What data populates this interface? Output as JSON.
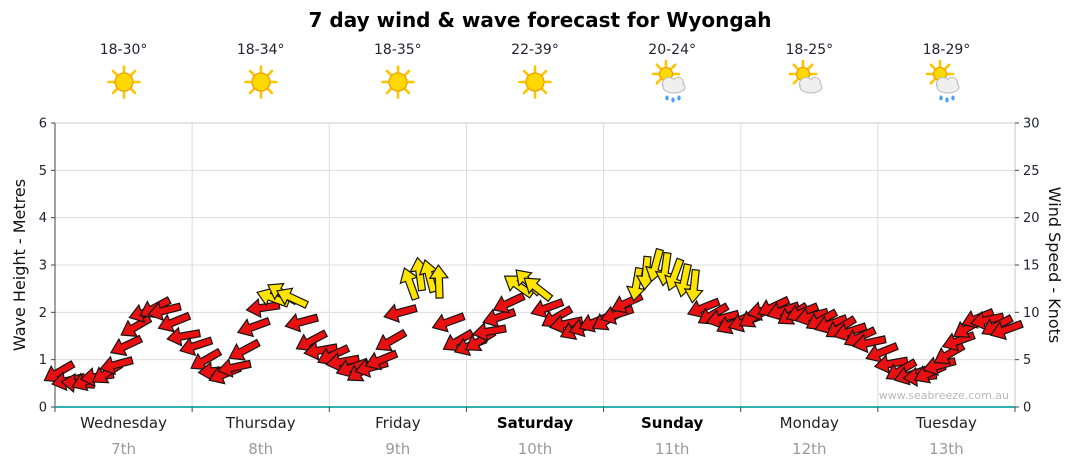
{
  "title": "7 day wind & wave forecast for Wyongah",
  "watermark": "www.seabreeze.com.au",
  "axes": {
    "left_label": "Wave Height - Metres",
    "right_label": "Wind Speed - Knots",
    "left_ticks": [
      0,
      1,
      2,
      3,
      4,
      5,
      6
    ],
    "right_ticks": [
      0,
      5,
      10,
      15,
      20,
      25,
      30
    ]
  },
  "days": [
    {
      "name": "Wednesday",
      "date": "7th",
      "temp": "18-30°",
      "icon": "sunny",
      "bold": false
    },
    {
      "name": "Thursday",
      "date": "8th",
      "temp": "18-34°",
      "icon": "sunny",
      "bold": false
    },
    {
      "name": "Friday",
      "date": "9th",
      "temp": "18-35°",
      "icon": "sunny",
      "bold": false
    },
    {
      "name": "Saturday",
      "date": "10th",
      "temp": "22-39°",
      "icon": "sunny",
      "bold": true
    },
    {
      "name": "Sunday",
      "date": "11th",
      "temp": "20-24°",
      "icon": "sun-showers",
      "bold": true
    },
    {
      "name": "Monday",
      "date": "12th",
      "temp": "18-25°",
      "icon": "partly-cloudy",
      "bold": false
    },
    {
      "name": "Tuesday",
      "date": "13th",
      "temp": "18-29°",
      "icon": "sun-showers",
      "bold": false
    }
  ],
  "chart_data": {
    "type": "wind-arrows",
    "title": "7 day wind & wave forecast for Wyongah",
    "x_days": [
      "Wednesday 7th",
      "Thursday 8th",
      "Friday 9th",
      "Saturday 10th",
      "Sunday 11th",
      "Monday 12th",
      "Tuesday 13th"
    ],
    "y_left": {
      "label": "Wave Height - Metres",
      "min": 0,
      "max": 6
    },
    "y_right": {
      "label": "Wind Speed - Knots",
      "min": 0,
      "max": 30
    },
    "legend": "red arrows = lighter winds, yellow arrows = stronger winds (~12+ knots); arrow angle = wind direction",
    "colors": {
      "r": "#e81010",
      "y": "#ffe400"
    },
    "point_fields": [
      "day_index",
      "day_fraction",
      "wind_knots",
      "direction_deg",
      "color"
    ],
    "points": [
      [
        0,
        0.03,
        3.7,
        150,
        "r"
      ],
      [
        0,
        0.1,
        2.8,
        168,
        "r"
      ],
      [
        0,
        0.17,
        2.5,
        185,
        "r"
      ],
      [
        0,
        0.24,
        2.8,
        158,
        "r"
      ],
      [
        0,
        0.31,
        3.2,
        172,
        "r"
      ],
      [
        0,
        0.38,
        3.6,
        148,
        "r"
      ],
      [
        0,
        0.45,
        4.5,
        165,
        "r"
      ],
      [
        0,
        0.52,
        6.5,
        155,
        "r"
      ],
      [
        0,
        0.59,
        8.5,
        150,
        "r"
      ],
      [
        0,
        0.66,
        10.0,
        162,
        "r"
      ],
      [
        0,
        0.73,
        10.5,
        152,
        "r"
      ],
      [
        0,
        0.8,
        10.2,
        166,
        "r"
      ],
      [
        0,
        0.87,
        9.0,
        158,
        "r"
      ],
      [
        0,
        0.94,
        7.5,
        170,
        "r"
      ],
      [
        1,
        0.03,
        6.5,
        162,
        "r"
      ],
      [
        1,
        0.1,
        5.0,
        150,
        "r"
      ],
      [
        1,
        0.17,
        3.8,
        175,
        "r"
      ],
      [
        1,
        0.24,
        3.5,
        158,
        "r"
      ],
      [
        1,
        0.31,
        4.2,
        168,
        "r"
      ],
      [
        1,
        0.38,
        6.0,
        152,
        "r"
      ],
      [
        1,
        0.45,
        8.5,
        160,
        "r"
      ],
      [
        1,
        0.52,
        10.5,
        172,
        "r"
      ],
      [
        1,
        0.59,
        11.5,
        200,
        "y"
      ],
      [
        1,
        0.66,
        12.0,
        210,
        "y"
      ],
      [
        1,
        0.73,
        11.5,
        205,
        "y"
      ],
      [
        1,
        0.8,
        9.0,
        165,
        "r"
      ],
      [
        1,
        0.87,
        7.0,
        152,
        "r"
      ],
      [
        1,
        0.94,
        6.0,
        170,
        "r"
      ],
      [
        2,
        0.03,
        5.5,
        155,
        "r"
      ],
      [
        2,
        0.1,
        4.8,
        170,
        "r"
      ],
      [
        2,
        0.17,
        4.2,
        160,
        "r"
      ],
      [
        2,
        0.24,
        3.8,
        148,
        "r"
      ],
      [
        2,
        0.31,
        4.2,
        165,
        "r"
      ],
      [
        2,
        0.38,
        5.0,
        158,
        "r"
      ],
      [
        2,
        0.45,
        7.0,
        150,
        "r"
      ],
      [
        2,
        0.52,
        10.0,
        165,
        "r"
      ],
      [
        2,
        0.59,
        13.0,
        250,
        "y"
      ],
      [
        2,
        0.66,
        14.0,
        262,
        "y"
      ],
      [
        2,
        0.73,
        13.8,
        255,
        "y"
      ],
      [
        2,
        0.8,
        13.2,
        268,
        "y"
      ],
      [
        2,
        0.87,
        9.0,
        160,
        "r"
      ],
      [
        2,
        0.94,
        7.0,
        150,
        "r"
      ],
      [
        3,
        0.03,
        6.5,
        158,
        "r"
      ],
      [
        3,
        0.1,
        7.0,
        148,
        "r"
      ],
      [
        3,
        0.17,
        8.0,
        170,
        "r"
      ],
      [
        3,
        0.24,
        9.5,
        162,
        "r"
      ],
      [
        3,
        0.31,
        11.0,
        155,
        "r"
      ],
      [
        3,
        0.38,
        12.8,
        215,
        "y"
      ],
      [
        3,
        0.45,
        13.2,
        225,
        "y"
      ],
      [
        3,
        0.52,
        12.5,
        218,
        "y"
      ],
      [
        3,
        0.59,
        10.5,
        160,
        "r"
      ],
      [
        3,
        0.66,
        9.5,
        150,
        "r"
      ],
      [
        3,
        0.73,
        8.8,
        168,
        "r"
      ],
      [
        3,
        0.8,
        8.2,
        155,
        "r"
      ],
      [
        3,
        0.87,
        8.5,
        162,
        "r"
      ],
      [
        3,
        0.94,
        9.0,
        158,
        "r"
      ],
      [
        4,
        0.03,
        9.2,
        150,
        "r"
      ],
      [
        4,
        0.1,
        9.8,
        162,
        "r"
      ],
      [
        4,
        0.17,
        11.0,
        155,
        "r"
      ],
      [
        4,
        0.24,
        13.0,
        100,
        "y"
      ],
      [
        4,
        0.31,
        14.2,
        95,
        "y"
      ],
      [
        4,
        0.38,
        15.0,
        105,
        "y"
      ],
      [
        4,
        0.45,
        14.6,
        98,
        "y"
      ],
      [
        4,
        0.52,
        14.0,
        110,
        "y"
      ],
      [
        4,
        0.59,
        13.4,
        102,
        "y"
      ],
      [
        4,
        0.66,
        12.8,
        96,
        "y"
      ],
      [
        4,
        0.73,
        10.5,
        158,
        "r"
      ],
      [
        4,
        0.8,
        9.8,
        150,
        "r"
      ],
      [
        4,
        0.87,
        9.4,
        165,
        "r"
      ],
      [
        4,
        0.94,
        8.8,
        155,
        "r"
      ],
      [
        5,
        0.03,
        9.0,
        160,
        "r"
      ],
      [
        5,
        0.1,
        9.5,
        150,
        "r"
      ],
      [
        5,
        0.17,
        10.2,
        168,
        "r"
      ],
      [
        5,
        0.24,
        10.6,
        155,
        "r"
      ],
      [
        5,
        0.31,
        10.2,
        162,
        "r"
      ],
      [
        5,
        0.38,
        9.8,
        148,
        "r"
      ],
      [
        5,
        0.45,
        10.0,
        158,
        "r"
      ],
      [
        5,
        0.52,
        9.6,
        165,
        "r"
      ],
      [
        5,
        0.59,
        9.2,
        152,
        "r"
      ],
      [
        5,
        0.66,
        8.8,
        160,
        "r"
      ],
      [
        5,
        0.73,
        8.4,
        148,
        "r"
      ],
      [
        5,
        0.8,
        8.0,
        162,
        "r"
      ],
      [
        5,
        0.87,
        7.4,
        155,
        "r"
      ],
      [
        5,
        0.94,
        6.8,
        168,
        "r"
      ],
      [
        6,
        0.03,
        5.8,
        158,
        "r"
      ],
      [
        6,
        0.1,
        4.6,
        170,
        "r"
      ],
      [
        6,
        0.17,
        3.9,
        150,
        "r"
      ],
      [
        6,
        0.24,
        3.4,
        162,
        "r"
      ],
      [
        6,
        0.31,
        3.2,
        175,
        "r"
      ],
      [
        6,
        0.38,
        3.6,
        155,
        "r"
      ],
      [
        6,
        0.45,
        4.4,
        165,
        "r"
      ],
      [
        6,
        0.52,
        5.6,
        150,
        "r"
      ],
      [
        6,
        0.59,
        7.0,
        160,
        "r"
      ],
      [
        6,
        0.66,
        8.4,
        148,
        "r"
      ],
      [
        6,
        0.73,
        9.4,
        158,
        "r"
      ],
      [
        6,
        0.8,
        9.2,
        168,
        "r"
      ],
      [
        6,
        0.87,
        8.6,
        152,
        "r"
      ],
      [
        6,
        0.94,
        8.2,
        160,
        "r"
      ]
    ]
  }
}
